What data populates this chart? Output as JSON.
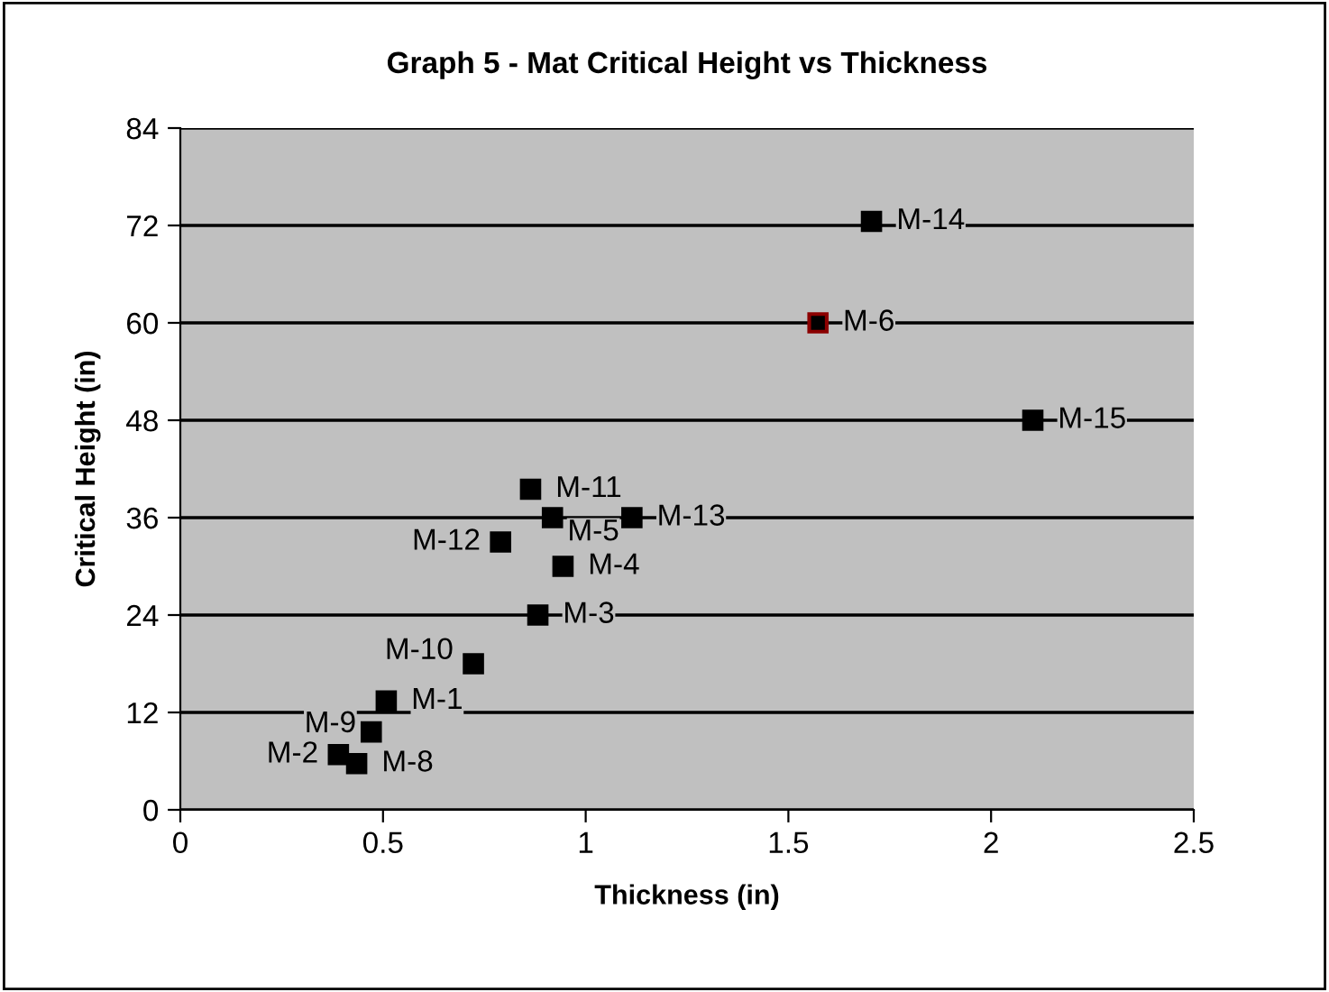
{
  "chart_data": {
    "type": "scatter",
    "title": "Graph 5 - Mat Critical Height vs Thickness",
    "xlabel": "Thickness (in)",
    "ylabel": "Critical Height (in)",
    "x": [
      0.508,
      0.39,
      0.882,
      0.944,
      0.918,
      1.573,
      0.435,
      0.471,
      0.723,
      0.864,
      0.79,
      1.114,
      1.705,
      2.103
    ],
    "values": [
      13.4,
      6.8,
      24,
      30,
      36,
      60,
      5.7,
      9.6,
      18,
      39.5,
      33,
      36,
      72.5,
      48
    ],
    "value_labels": [
      "M-1",
      "M-2",
      "M-3",
      "M-4",
      "M-5",
      "M-6",
      "M-8",
      "M-9",
      "M-10",
      "M-11",
      "M-12",
      "M-13",
      "M-14",
      "M-15"
    ],
    "color": "#000000",
    "colors": [
      "#000000",
      "#000000",
      "#000000",
      "#000000",
      "#000000",
      "#8b0000",
      "#000000",
      "#000000",
      "#000000",
      "#000000",
      "#000000",
      "#000000",
      "#000000",
      "#000000"
    ],
    "marker": "square",
    "xlim": [
      0,
      2.5
    ],
    "xticks": [
      0,
      0.5,
      1,
      1.5,
      2,
      2.5
    ],
    "ylim": [
      0,
      84
    ],
    "yticks": [
      0,
      12,
      24,
      36,
      48,
      60,
      72,
      84
    ],
    "grid": "y",
    "legend": false
  }
}
